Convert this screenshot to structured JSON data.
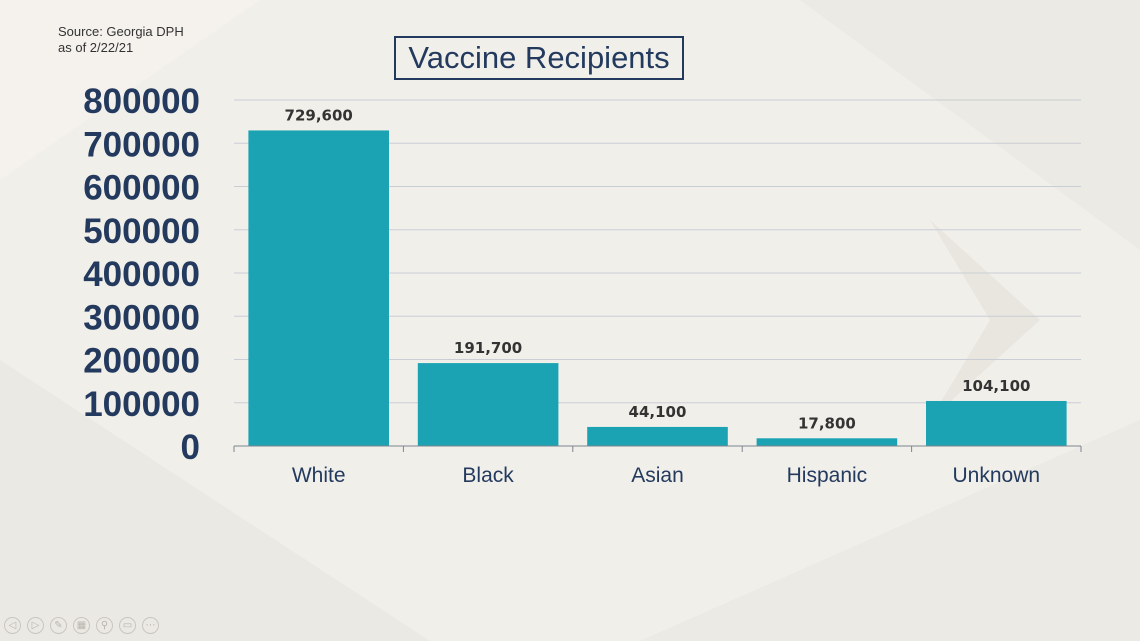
{
  "source": {
    "line1": "Source: Georgia DPH",
    "line2": "as of 2/22/21"
  },
  "chart_data": {
    "type": "bar",
    "title": "Vaccine Recipients",
    "categories": [
      "White",
      "Black",
      "Asian",
      "Hispanic",
      "Unknown"
    ],
    "values": [
      729600,
      191700,
      44100,
      17800,
      104100
    ],
    "data_labels": [
      "729,600",
      "191,700",
      "44,100",
      "17,800",
      "104,100"
    ],
    "ylim": [
      0,
      800000
    ],
    "yticks": [
      "0",
      "100000",
      "200000",
      "300000",
      "400000",
      "500000",
      "600000",
      "700000",
      "800000"
    ],
    "ytick_step": 100000,
    "grid": true,
    "xlabel": "",
    "ylabel": "",
    "bar_color": "#1ba3b4",
    "text_color": "#233a5e"
  },
  "controls": [
    {
      "name": "previous-slide-icon",
      "glyph": "◁"
    },
    {
      "name": "next-slide-icon",
      "glyph": "▷"
    },
    {
      "name": "pen-icon",
      "glyph": "✎"
    },
    {
      "name": "slides-grid-icon",
      "glyph": "▦"
    },
    {
      "name": "zoom-icon",
      "glyph": "⚲"
    },
    {
      "name": "subtitles-icon",
      "glyph": "▭"
    },
    {
      "name": "more-options-icon",
      "glyph": "⋯"
    }
  ]
}
